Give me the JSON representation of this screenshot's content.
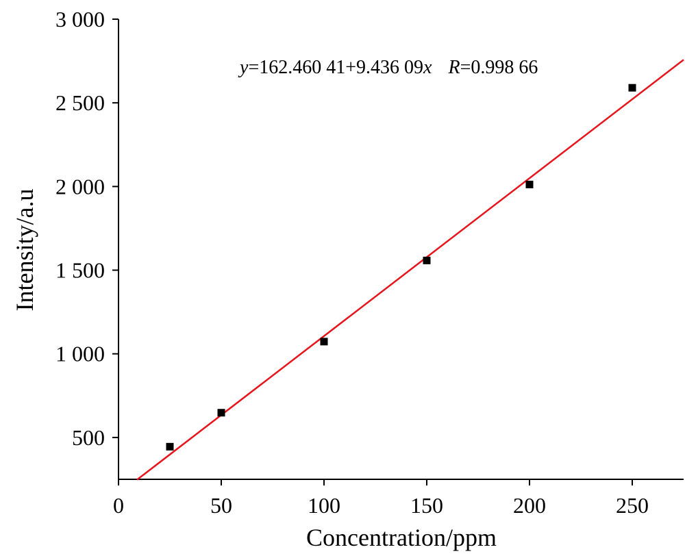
{
  "chart_data": {
    "type": "scatter",
    "xlabel": "Concentration/ppm",
    "ylabel": "Intensity/a.u",
    "xlim": [
      0,
      275
    ],
    "ylim": [
      250,
      3000
    ],
    "x_ticks": [
      0,
      50,
      100,
      150,
      200,
      250
    ],
    "x_tick_labels": [
      "0",
      "50",
      "100",
      "150",
      "200",
      "250"
    ],
    "y_ticks": [
      500,
      1000,
      1500,
      2000,
      2500,
      3000
    ],
    "y_tick_labels": [
      "500",
      "1 000",
      "1 500",
      "2 000",
      "2 500",
      "3 000"
    ],
    "grid": false,
    "series": [
      {
        "marker": "square",
        "color": "#000000",
        "x": [
          25,
          50,
          100,
          150,
          200,
          250
        ],
        "y": [
          445,
          648,
          1073,
          1558,
          2012,
          2590
        ]
      }
    ],
    "fit_line": {
      "intercept": 162.46041,
      "slope": 9.43609,
      "x_range": [
        9,
        275
      ],
      "color": "#e8141c"
    },
    "annotation": {
      "y_var": "y",
      "equation_rest": "=162.460 41+9.436 09",
      "x_var": "x",
      "r_var": "R",
      "r_rest": "=0.998 66"
    }
  }
}
